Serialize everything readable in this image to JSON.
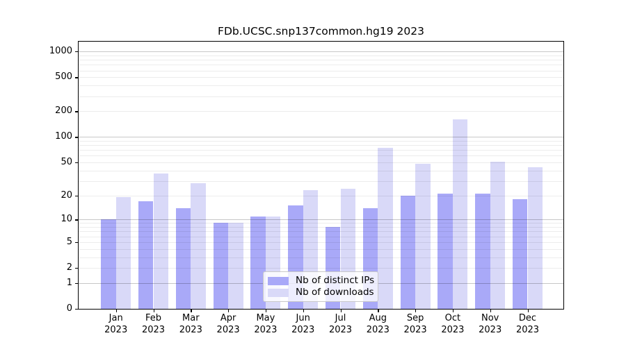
{
  "title": "FDb.UCSC.snp137common.hg19 2023",
  "chart_data": {
    "type": "bar",
    "title": "FDb.UCSC.snp137common.hg19 2023",
    "y_scale": "log1p",
    "grid": true,
    "legend_position": "bottom-center",
    "categories": [
      "Jan",
      "Feb",
      "Mar",
      "Apr",
      "May",
      "Jun",
      "Jul",
      "Aug",
      "Sep",
      "Oct",
      "Nov",
      "Dec"
    ],
    "x_year_label": "2023",
    "series": [
      {
        "name": "Nb of distinct IPs",
        "color": "#a9a9f8",
        "values": [
          10,
          17,
          14,
          9,
          11,
          15,
          8,
          14,
          20,
          21,
          21,
          18
        ]
      },
      {
        "name": "Nb of downloads",
        "color": "#d9d9f8",
        "values": [
          19,
          37,
          28,
          9,
          11,
          23,
          24,
          74,
          48,
          160,
          51,
          44
        ]
      }
    ],
    "y_ticks": [
      1000,
      500,
      200,
      100,
      50,
      20,
      10,
      5,
      2,
      1,
      0
    ],
    "ylim": [
      0,
      1270
    ],
    "colors": {
      "major_grid": "#c8c8c8",
      "minor_grid": "#ececec",
      "axis": "#000000",
      "background": "#ffffff"
    }
  }
}
